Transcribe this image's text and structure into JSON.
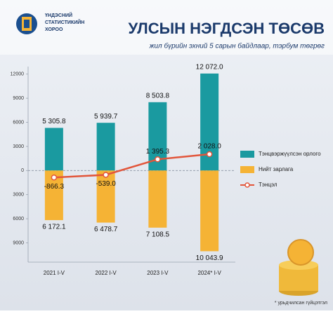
{
  "header": {
    "logo_text": [
      "ҮНДЭСНИЙ",
      "СТАТИСТИКИЙН",
      "ХОРОО"
    ]
  },
  "chart_data": {
    "type": "bar",
    "title": "УЛСЫН НЭГДСЭН ТӨСӨВ",
    "subtitle": "жил бүрийн эхний 5 сарын байдлаар, тэрбум төгрөг",
    "categories": [
      "2021 I-V",
      "2022 I-V",
      "2023 I-V",
      "2024* I-V"
    ],
    "series": [
      {
        "name": "Тэнцвэржүүлсэн орлого",
        "color": "#1a9aa0",
        "type": "bar",
        "values": [
          5305.8,
          5939.7,
          8503.8,
          12072.0
        ],
        "value_labels": [
          "5 305.8",
          "5 939.7",
          "8 503.8",
          "12 072.0"
        ]
      },
      {
        "name": "Нийт зарлага",
        "color": "#f5b335",
        "type": "bar",
        "values": [
          -6172.1,
          -6478.7,
          -7108.5,
          -10043.9
        ],
        "value_labels": [
          "6 172.1",
          "6 478.7",
          "7 108.5",
          "10 043.9"
        ]
      },
      {
        "name": "Тэнцэл",
        "color": "#e2553a",
        "type": "line",
        "values": [
          -866.3,
          -539.0,
          1395.3,
          2028.0
        ],
        "value_labels": [
          "-866.3",
          "-539.0",
          "1 395.3",
          "2 028.0"
        ]
      }
    ],
    "ylim": [
      -11400,
      12500
    ],
    "yticks": [
      {
        "value": -9000,
        "label": "9000"
      },
      {
        "value": -6000,
        "label": "6000"
      },
      {
        "value": -3000,
        "label": "3000"
      },
      0,
      3000,
      6000,
      9000,
      12000
    ],
    "legend": "right",
    "footnote": "* урьдчилсан гүйцэтгэл"
  }
}
